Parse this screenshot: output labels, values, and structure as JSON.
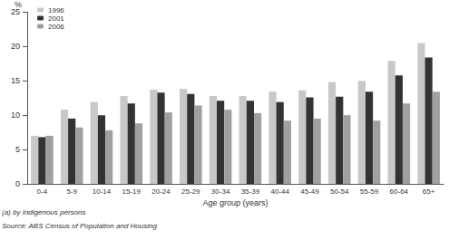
{
  "chart_data": {
    "type": "bar",
    "x_label": "Age group (years)",
    "y_label": "%",
    "footnote": "(a) by Indigenous persons",
    "source": "Source: ABS Census of Population and Housing",
    "categories": [
      "0-4",
      "5-9",
      "10-14",
      "15-19",
      "20-24",
      "25-29",
      "30-34",
      "35-39",
      "40-44",
      "45-49",
      "50-54",
      "55-59",
      "60-64",
      "65+"
    ],
    "series": [
      {
        "name": "1996",
        "color": "#c8c8c8",
        "values": [
          7.0,
          10.8,
          11.9,
          12.8,
          13.7,
          13.8,
          12.8,
          12.8,
          13.4,
          13.6,
          14.8,
          15.0,
          17.9,
          20.5
        ]
      },
      {
        "name": "2001",
        "color": "#333333",
        "values": [
          6.8,
          9.5,
          10.0,
          11.7,
          13.3,
          13.1,
          12.1,
          12.1,
          11.9,
          12.6,
          12.7,
          13.4,
          15.8,
          18.4
        ]
      },
      {
        "name": "2006",
        "color": "#a0a0a0",
        "values": [
          7.0,
          8.2,
          7.8,
          8.8,
          10.4,
          11.4,
          10.8,
          10.3,
          9.2,
          9.5,
          10.0,
          9.2,
          11.7,
          13.4
        ]
      }
    ],
    "ylim": [
      0,
      25
    ],
    "yticks": [
      0,
      5,
      10,
      15,
      20,
      25
    ],
    "grid": false,
    "legend": "upper left"
  }
}
